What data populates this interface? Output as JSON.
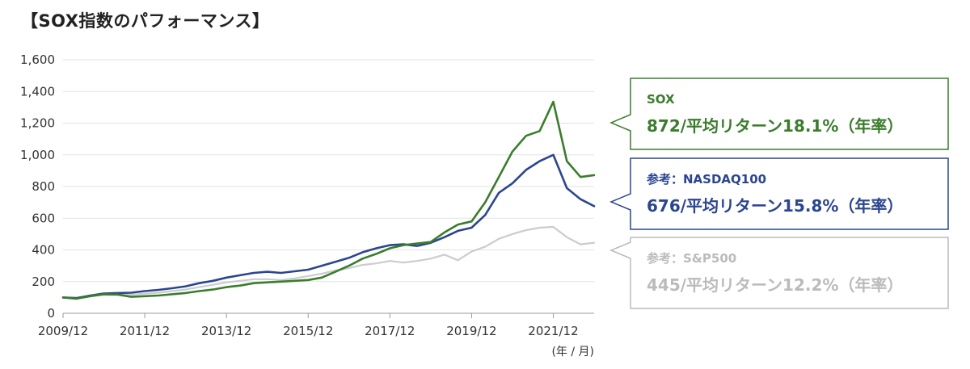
{
  "title": "【SOX指数のパフォーマンス】",
  "chart_data": {
    "type": "line",
    "xlabel": "",
    "ylabel": "",
    "unit_label": "(年 / 月)",
    "ylim": [
      0,
      1600
    ],
    "yticks": [
      0,
      200,
      400,
      600,
      800,
      1000,
      1200,
      1400,
      1600
    ],
    "ytick_labels": [
      "0",
      "200",
      "400",
      "600",
      "800",
      "1,000",
      "1,200",
      "1,400",
      "1,600"
    ],
    "xlim": [
      0,
      39
    ],
    "xticks": [
      0,
      6,
      12,
      18,
      24,
      30,
      36
    ],
    "xtick_labels": [
      "2009/12",
      "2011/12",
      "2013/12",
      "2015/12",
      "2017/12",
      "2019/12",
      "2021/12"
    ],
    "grid": true,
    "x_unit": "quarters since 2009/12",
    "series": [
      {
        "name": "SOX",
        "color": "#3a7d2c",
        "values": [
          100,
          92,
          108,
          120,
          118,
          104,
          108,
          112,
          120,
          128,
          140,
          150,
          165,
          175,
          190,
          195,
          200,
          205,
          210,
          225,
          262,
          300,
          345,
          375,
          410,
          430,
          440,
          450,
          510,
          560,
          580,
          700,
          860,
          1020,
          1120,
          1150,
          1335,
          960,
          860,
          872
        ]
      },
      {
        "name": "NASDAQ100",
        "color": "#2b4590",
        "values": [
          100,
          96,
          112,
          125,
          128,
          130,
          140,
          148,
          158,
          170,
          190,
          205,
          225,
          240,
          255,
          262,
          255,
          265,
          275,
          300,
          325,
          350,
          385,
          410,
          430,
          435,
          425,
          445,
          480,
          520,
          540,
          620,
          760,
          820,
          905,
          960,
          1000,
          790,
          720,
          676
        ]
      },
      {
        "name": "S&P500",
        "color": "#cccccc",
        "values": [
          100,
          98,
          108,
          115,
          117,
          118,
          124,
          130,
          140,
          150,
          165,
          180,
          195,
          205,
          215,
          215,
          210,
          220,
          235,
          250,
          270,
          285,
          305,
          315,
          330,
          320,
          330,
          345,
          370,
          335,
          390,
          420,
          470,
          500,
          525,
          540,
          545,
          480,
          435,
          445
        ]
      }
    ]
  },
  "callouts": {
    "sox": {
      "ref": "SOX",
      "main": "872/平均リターン18.1%（年率）",
      "color": "#3a7d2c"
    },
    "nasdaq": {
      "ref": "参考：NASDAQ100",
      "main": "676/平均リターン15.8%（年率）",
      "color": "#2b4590"
    },
    "sp500": {
      "ref": "参考：S&P500",
      "main": "445/平均リターン12.2%（年率）",
      "color": "#bbbbbb"
    }
  }
}
